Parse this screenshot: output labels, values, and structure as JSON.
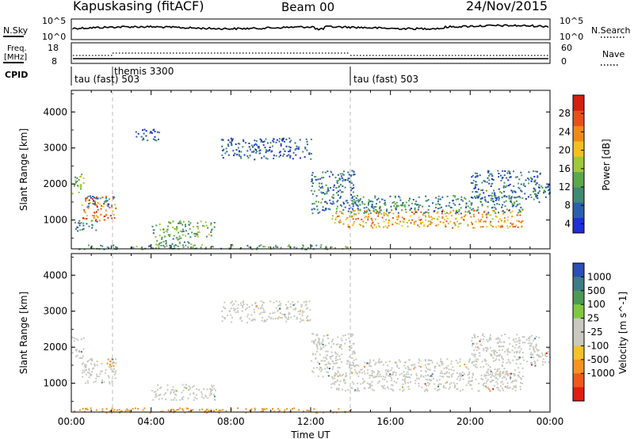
{
  "header": {
    "station": "Kapuskasing (fitACF)",
    "beam": "Beam 00",
    "date": "24/Nov/2015"
  },
  "top_panels": {
    "nsky": {
      "label": "N.Sky",
      "tick_hi": "10^5",
      "tick_lo": "10^0"
    },
    "nsearch": {
      "label": "N.Search",
      "tick_hi": "10^5",
      "tick_lo": "10^0"
    },
    "freq": {
      "label_line1": "Freq.",
      "label_line2": "[MHz]",
      "tick_hi": "18",
      "tick_lo": "8"
    },
    "nave": {
      "label": "Nave",
      "tick_hi": "60",
      "tick_lo": "0"
    },
    "cpid": {
      "label": "CPID"
    }
  },
  "cpid_segments": [
    {
      "label": "tau (fast) 503",
      "start_hour": 0
    },
    {
      "label": "themis 3300",
      "start_hour": 2
    },
    {
      "label": "tau (fast) 503",
      "start_hour": 14
    }
  ],
  "colors": {
    "power": [
      "#1f2fd6",
      "#2a5fb0",
      "#3f8a72",
      "#5aa84a",
      "#9fc83a",
      "#f2c11f",
      "#f08a16",
      "#e8501a",
      "#d42010"
    ],
    "velocity": [
      "#2a4fb8",
      "#3d7c86",
      "#4c9a55",
      "#7fc93f",
      "#c9c9c0",
      "#c9c9c0",
      "#f4c22a",
      "#f49320",
      "#ee5a1a",
      "#e01e12"
    ]
  },
  "chart_data": [
    {
      "type": "heatmap",
      "title": "",
      "xlabel": "",
      "ylabel": "Slant Range [km]",
      "xlim": [
        0,
        24
      ],
      "ylim": [
        200,
        4600
      ],
      "x_ticks": [],
      "y_ticks": [
        "1000",
        "2000",
        "3000",
        "4000"
      ],
      "colorbar": {
        "label": "Power [dB]",
        "ticks": [
          "4",
          "8",
          "12",
          "16",
          "20",
          "24",
          "28"
        ],
        "range": [
          2,
          32
        ]
      },
      "regions": [
        {
          "x": [
            0.0,
            0.6
          ],
          "range": [
            1700,
            2300
          ],
          "value": 15
        },
        {
          "x": [
            0.5,
            2.2
          ],
          "range": [
            1000,
            1700
          ],
          "value": 25
        },
        {
          "x": [
            0.8,
            2.2
          ],
          "range": [
            1400,
            1700
          ],
          "value": 10
        },
        {
          "x": [
            0.1,
            1.3
          ],
          "range": [
            700,
            1000
          ],
          "value": 9
        },
        {
          "x": [
            4.0,
            7.2
          ],
          "range": [
            550,
            1000
          ],
          "value": 14
        },
        {
          "x": [
            4.2,
            6.2
          ],
          "range": [
            300,
            550
          ],
          "value": 12
        },
        {
          "x": [
            3.2,
            4.4
          ],
          "range": [
            3200,
            3550
          ],
          "value": 6
        },
        {
          "x": [
            7.5,
            12.0
          ],
          "range": [
            2700,
            3300
          ],
          "value": 7
        },
        {
          "x": [
            12.0,
            14.2
          ],
          "range": [
            1200,
            2400
          ],
          "value": 9
        },
        {
          "x": [
            13.0,
            22.6
          ],
          "range": [
            800,
            1300
          ],
          "value": 22
        },
        {
          "x": [
            14.0,
            22.6
          ],
          "range": [
            1200,
            1700
          ],
          "value": 10
        },
        {
          "x": [
            20.0,
            23.5
          ],
          "range": [
            1600,
            2400
          ],
          "value": 8
        },
        {
          "x": [
            23.0,
            24.0
          ],
          "range": [
            1500,
            2000
          ],
          "value": 10
        },
        {
          "x": [
            0.0,
            14.0
          ],
          "range": [
            200,
            330
          ],
          "value": 12
        }
      ]
    },
    {
      "type": "heatmap",
      "title": "",
      "xlabel": "Time UT",
      "ylabel": "Slant Range [km]",
      "xlim": [
        0,
        24
      ],
      "ylim": [
        200,
        4600
      ],
      "x_ticks": [
        "00:00",
        "04:00",
        "08:00",
        "12:00",
        "16:00",
        "20:00",
        "00:00"
      ],
      "y_ticks": [
        "1000",
        "2000",
        "3000",
        "4000"
      ],
      "colorbar": {
        "label": "Velocity [m s^-1]",
        "ticks": [
          "1000",
          "500",
          "100",
          "25",
          "-25",
          "-100",
          "-500",
          "-1000"
        ]
      },
      "regions": [
        {
          "x": [
            0.0,
            0.6
          ],
          "range": [
            1700,
            2300
          ],
          "value": 0
        },
        {
          "x": [
            0.5,
            2.2
          ],
          "range": [
            1000,
            1700
          ],
          "value": 0
        },
        {
          "x": [
            1.7,
            2.3
          ],
          "range": [
            1450,
            1700
          ],
          "value": -150
        },
        {
          "x": [
            4.0,
            7.2
          ],
          "range": [
            550,
            1000
          ],
          "value": 0
        },
        {
          "x": [
            7.5,
            12.0
          ],
          "range": [
            2700,
            3300
          ],
          "value": 0
        },
        {
          "x": [
            12.0,
            14.2
          ],
          "range": [
            1200,
            2400
          ],
          "value": 0
        },
        {
          "x": [
            13.0,
            22.6
          ],
          "range": [
            800,
            1300
          ],
          "value": 0
        },
        {
          "x": [
            14.0,
            22.6
          ],
          "range": [
            1200,
            1700
          ],
          "value": 0
        },
        {
          "x": [
            20.0,
            23.5
          ],
          "range": [
            1600,
            2400
          ],
          "value": 0
        },
        {
          "x": [
            23.0,
            24.0
          ],
          "range": [
            1500,
            2000
          ],
          "value": 0
        },
        {
          "x": [
            0.0,
            14.0
          ],
          "range": [
            200,
            330
          ],
          "value": -200
        }
      ]
    }
  ]
}
